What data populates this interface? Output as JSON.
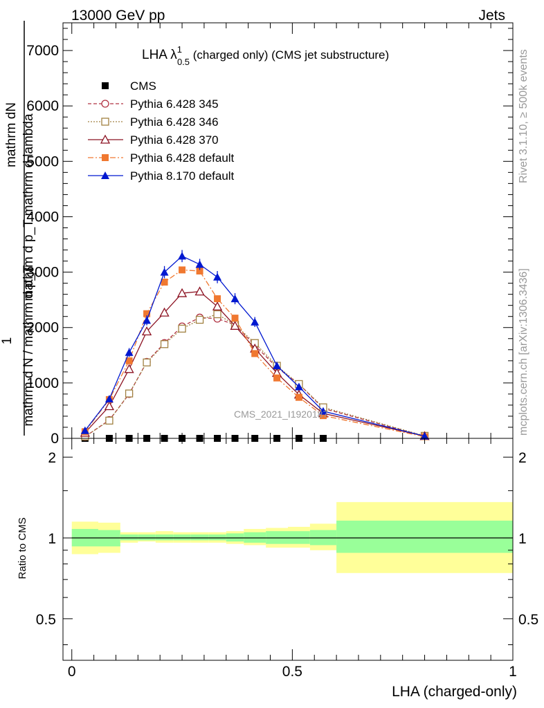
{
  "header": {
    "left": "13000 GeV pp",
    "right": "Jets"
  },
  "side_labels": {
    "rivet": "Rivet 3.1.10, ≥ 500k events",
    "mcplots": "mcplots.cern.ch [arXiv:1306.3436]"
  },
  "chart_data": [
    {
      "type": "line",
      "title": "LHA λ",
      "title_sup": "1",
      "title_sub": "0.5",
      "title_rest": " (charged only) (CMS jet substructure)",
      "ylabel_numer": "mathrm dN",
      "ylabel_denom": "mathrm d p_T mathrm d lambda",
      "ylabel_one": "1",
      "ylabel_norm": "mathrm d N / mathrm d p_T",
      "xlabel": "",
      "watermark": "CMS_2021_I1920187",
      "xlim": [
        -0.02,
        1.0
      ],
      "ylim": [
        0,
        7500
      ],
      "yticks": [
        0,
        1000,
        2000,
        3000,
        4000,
        5000,
        6000,
        7000
      ],
      "ytick_labels": [
        "0",
        "1000",
        "2000",
        "3000",
        "4000",
        "5000",
        "6000",
        "7000"
      ],
      "legend_position": "top-left",
      "series": [
        {
          "name": "CMS",
          "color": "#000000",
          "marker": "square-filled",
          "line": "none",
          "x": [
            0.03,
            0.085,
            0.13,
            0.17,
            0.21,
            0.25,
            0.29,
            0.33,
            0.37,
            0.415,
            0.465,
            0.515,
            0.57
          ],
          "y": [
            0,
            0,
            0,
            0,
            0,
            0,
            0,
            0,
            0,
            0,
            0,
            0,
            0
          ]
        },
        {
          "name": "Pythia 6.428 345",
          "color": "#b03040",
          "marker": "circle-open",
          "line": "dashed",
          "x": [
            0.03,
            0.085,
            0.13,
            0.17,
            0.21,
            0.25,
            0.29,
            0.33,
            0.37,
            0.415,
            0.465,
            0.515,
            0.57,
            0.8
          ],
          "y": [
            30,
            330,
            800,
            1380,
            1720,
            2020,
            2180,
            2160,
            2050,
            1680,
            1280,
            980,
            540,
            40
          ]
        },
        {
          "name": "Pythia 6.428 346",
          "color": "#a08040",
          "marker": "square-open",
          "line": "dotted",
          "x": [
            0.03,
            0.085,
            0.13,
            0.17,
            0.21,
            0.25,
            0.29,
            0.33,
            0.37,
            0.415,
            0.465,
            0.515,
            0.57,
            0.8
          ],
          "y": [
            35,
            320,
            810,
            1370,
            1700,
            1980,
            2140,
            2240,
            2050,
            1720,
            1310,
            980,
            560,
            45
          ]
        },
        {
          "name": "Pythia 6.428 370",
          "color": "#8b1020",
          "marker": "triangle-open",
          "line": "solid",
          "x": [
            0.03,
            0.085,
            0.13,
            0.17,
            0.21,
            0.25,
            0.29,
            0.33,
            0.37,
            0.415,
            0.465,
            0.515,
            0.57,
            0.8
          ],
          "y": [
            100,
            580,
            1250,
            1930,
            2270,
            2620,
            2650,
            2380,
            2030,
            1620,
            1180,
            790,
            450,
            40
          ]
        },
        {
          "name": "Pythia 6.428 default",
          "color": "#f07830",
          "marker": "square-filled",
          "line": "dashdot",
          "x": [
            0.03,
            0.085,
            0.13,
            0.17,
            0.21,
            0.25,
            0.29,
            0.33,
            0.37,
            0.415,
            0.465,
            0.515,
            0.57,
            0.8
          ],
          "y": [
            120,
            700,
            1400,
            2250,
            2820,
            3040,
            3020,
            2520,
            2170,
            1530,
            1090,
            740,
            410,
            30
          ]
        },
        {
          "name": "Pythia 8.170 default",
          "color": "#0018d0",
          "marker": "triangle-filled",
          "line": "solid",
          "x": [
            0.03,
            0.085,
            0.13,
            0.17,
            0.21,
            0.25,
            0.29,
            0.33,
            0.37,
            0.415,
            0.465,
            0.515,
            0.57,
            0.8
          ],
          "y": [
            140,
            710,
            1550,
            2130,
            3000,
            3290,
            3140,
            2910,
            2520,
            2100,
            1310,
            930,
            490,
            40
          ],
          "yerr": [
            30,
            50,
            80,
            90,
            110,
            110,
            100,
            110,
            100,
            90,
            70,
            60,
            40,
            10
          ]
        }
      ]
    },
    {
      "type": "bar",
      "ylabel": "Ratio to CMS",
      "xlabel": "LHA (charged-only)",
      "xlim": [
        -0.02,
        1.0
      ],
      "xticks": [
        0,
        0.5,
        1
      ],
      "xtick_labels": [
        "0",
        "0.5",
        "1"
      ],
      "ylim": [
        0.35,
        2.35
      ],
      "log_scale_y": true,
      "yticks": [
        0.5,
        1,
        2
      ],
      "ytick_labels": [
        "0.5",
        "1",
        "2"
      ],
      "reference_line": 1,
      "bands": {
        "bin_edges": [
          0.0,
          0.06,
          0.11,
          0.15,
          0.19,
          0.23,
          0.27,
          0.31,
          0.35,
          0.39,
          0.44,
          0.49,
          0.54,
          0.6,
          1.0
        ],
        "inner_color": "#99ff99",
        "outer_color": "#ffff99",
        "inner_low": [
          0.93,
          0.93,
          0.98,
          0.98,
          0.98,
          0.98,
          0.98,
          0.98,
          0.97,
          0.96,
          0.95,
          0.95,
          0.94,
          0.88
        ],
        "inner_high": [
          1.08,
          1.07,
          1.03,
          1.03,
          1.03,
          1.03,
          1.03,
          1.03,
          1.04,
          1.05,
          1.06,
          1.06,
          1.07,
          1.16
        ],
        "outer_low": [
          0.87,
          0.88,
          0.96,
          0.97,
          0.96,
          0.96,
          0.96,
          0.96,
          0.95,
          0.94,
          0.92,
          0.92,
          0.9,
          0.74
        ],
        "outer_high": [
          1.15,
          1.14,
          1.05,
          1.05,
          1.06,
          1.05,
          1.05,
          1.05,
          1.06,
          1.08,
          1.09,
          1.1,
          1.13,
          1.36
        ]
      }
    }
  ]
}
